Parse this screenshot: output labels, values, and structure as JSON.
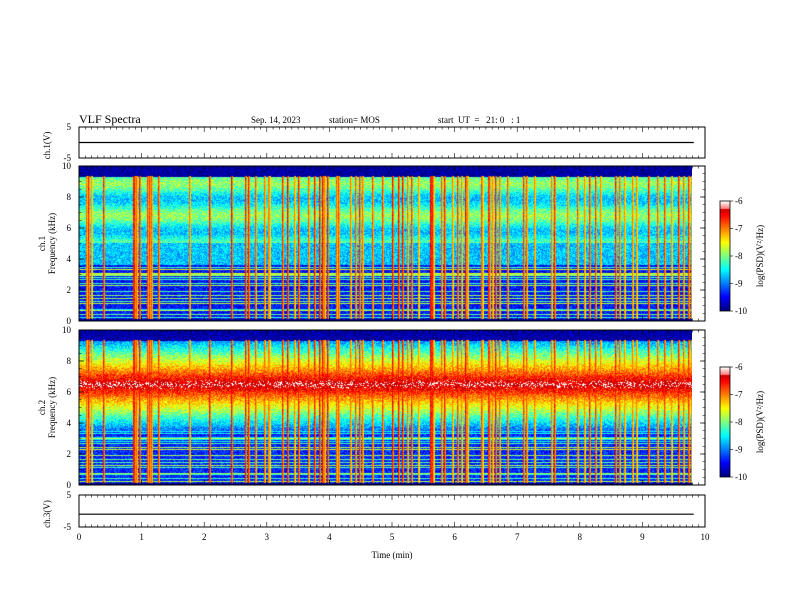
{
  "header": {
    "title": "VLF Spectra",
    "date": "Sep. 14, 2023",
    "station": "station= MOS",
    "start": "start  UT  =   21: 0   : 1"
  },
  "colors": {
    "jet_low": "#00008f",
    "jet_mid": "#00ff80",
    "jet_high": "#ff0000",
    "jet_peak": "#ffffff",
    "frame": "#000000"
  },
  "chart_data": [
    {
      "type": "line",
      "panel": "ch1-voltage",
      "ylabel": "ch.1(V)",
      "yticks": [
        "5",
        "-5"
      ],
      "ylim": [
        -5,
        5
      ],
      "xlim": [
        0,
        10
      ],
      "series": [
        {
          "x": [
            0,
            9.82
          ],
          "y": [
            0,
            0
          ]
        }
      ]
    },
    {
      "type": "heatmap",
      "panel": "ch1-spectrogram",
      "ylabel": "ch.1\nFrequency (kHz)",
      "ylabel_line1": "ch.1",
      "ylabel_line2": "Frequency (kHz)",
      "yticks": [
        "0",
        "2",
        "4",
        "6",
        "8",
        "10"
      ],
      "ylim": [
        0,
        10
      ],
      "xlim": [
        0,
        9.82
      ],
      "colorbar": {
        "label": "log(PSD)(V²/Hz)",
        "ticks": [
          "-6",
          "-7",
          "-8",
          "-9",
          "-10"
        ],
        "range": [
          -10,
          -6
        ]
      },
      "description": "Broadband background weak below ~3.5 kHz, moderate above 5 kHz; frequent vertical broadband impulses (sferics) reaching -6"
    },
    {
      "type": "heatmap",
      "panel": "ch2-spectrogram",
      "ylabel": "ch.2\nFrequency (kHz)",
      "ylabel_line1": "ch.2",
      "ylabel_line2": "Frequency (kHz)",
      "yticks": [
        "0",
        "2",
        "4",
        "6",
        "8",
        "10"
      ],
      "ylim": [
        0,
        10
      ],
      "xlim": [
        0,
        9.82
      ],
      "colorbar": {
        "label": "log(PSD)(V²/Hz)",
        "ticks": [
          "-6",
          "-7",
          "-8",
          "-9",
          "-10"
        ],
        "range": [
          -10,
          -6
        ]
      },
      "description": "Strong band centred near 6-7 kHz (red) across full time range, weaker below 4 kHz"
    },
    {
      "type": "line",
      "panel": "ch3-voltage",
      "ylabel": "ch.3(V)",
      "yticks": [
        "5",
        "-5"
      ],
      "ylim": [
        -5,
        5
      ],
      "xlim": [
        0,
        10
      ],
      "xlabel": "Time  (min)",
      "xticks": [
        "0",
        "1",
        "2",
        "3",
        "4",
        "5",
        "6",
        "7",
        "8",
        "9",
        "10"
      ],
      "series": [
        {
          "x": [
            0,
            9.82
          ],
          "y": [
            -1,
            -1
          ]
        }
      ]
    }
  ]
}
